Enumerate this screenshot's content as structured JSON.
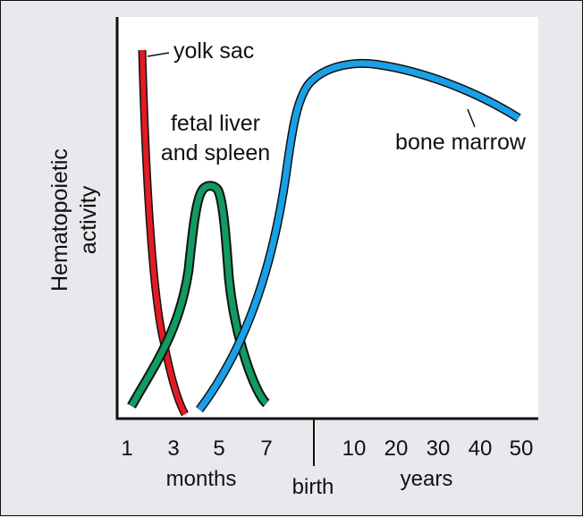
{
  "chart_data": {
    "type": "line",
    "ylabel_lines": [
      "Hematopoietic",
      "activity"
    ],
    "x_ticks_months": [
      "1",
      "3",
      "5",
      "7"
    ],
    "x_ticks_years": [
      "10",
      "20",
      "30",
      "40",
      "50"
    ],
    "x_group_labels": {
      "months": "months",
      "birth": "birth",
      "years": "years"
    },
    "grid": false,
    "series": [
      {
        "name": "yolk sac",
        "color": "#e31b23",
        "x": [
          "1.6 mo",
          "2.0 mo",
          "2.5 mo",
          "3.0 mo",
          "3.5 mo"
        ],
        "y": [
          0.88,
          0.45,
          0.23,
          0.1,
          0.0
        ]
      },
      {
        "name": "fetal liver and spleen",
        "label_lines": [
          "fetal liver",
          "and spleen"
        ],
        "color": "#119a62",
        "x": [
          "1.3 mo",
          "3.5 mo",
          "4.2 mo",
          "4.6 mo",
          "5.0 mo",
          "6.0 mo",
          "7.0 mo"
        ],
        "y": [
          0.0,
          0.3,
          0.55,
          0.63,
          0.55,
          0.2,
          0.0
        ]
      },
      {
        "name": "bone marrow",
        "color": "#1aa0e6",
        "x": [
          "4.2 mo",
          "6.5 mo",
          "birth",
          "10 yr",
          "20 yr",
          "30 yr",
          "40 yr",
          "50 yr"
        ],
        "y": [
          0.0,
          0.45,
          0.85,
          0.96,
          0.94,
          0.88,
          0.8,
          0.73
        ]
      }
    ]
  }
}
